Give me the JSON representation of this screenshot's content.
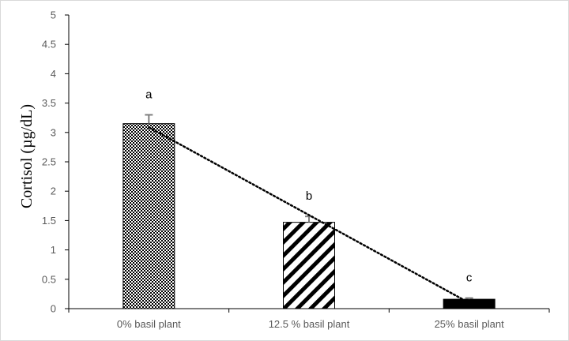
{
  "chart_data": {
    "type": "bar",
    "title": "",
    "xlabel": "",
    "ylabel": "Cortisol (µg/dL)",
    "ylim": [
      0,
      5
    ],
    "yticks": [
      0,
      0.5,
      1,
      1.5,
      2,
      2.5,
      3,
      3.5,
      4,
      4.5,
      5
    ],
    "ytick_labels": [
      "0",
      "0.5",
      "1",
      "1.5",
      "2",
      "2.5",
      "3",
      "3.5",
      "4",
      "4.5",
      "5"
    ],
    "categories": [
      "0% basil plant",
      "12.5 % basil plant",
      "25% basil plant"
    ],
    "values": [
      3.15,
      1.47,
      0.16
    ],
    "errors": [
      0.15,
      0.1,
      0.02
    ],
    "group_letters": [
      "a",
      "b",
      "c"
    ],
    "bar_patterns": [
      "dots",
      "diagonal-stripes",
      "solid"
    ],
    "trendline": "linear dotted",
    "grid": false
  }
}
